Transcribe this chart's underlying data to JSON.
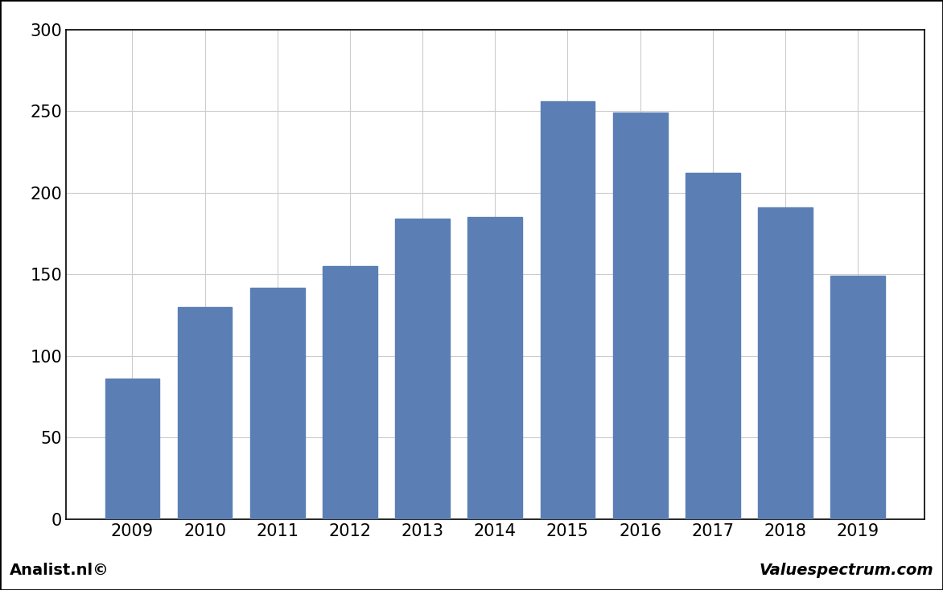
{
  "categories": [
    "2009",
    "2010",
    "2011",
    "2012",
    "2013",
    "2014",
    "2015",
    "2016",
    "2017",
    "2018",
    "2019"
  ],
  "values": [
    86,
    130,
    142,
    155,
    184,
    185,
    256,
    249,
    212,
    191,
    149
  ],
  "bar_color": "#5B7FB5",
  "ylim": [
    0,
    300
  ],
  "yticks": [
    0,
    50,
    100,
    150,
    200,
    250,
    300
  ],
  "background_color": "#FFFFFF",
  "plot_bg_color": "#FFFFFF",
  "grid_color": "#CCCCCC",
  "footer_left": "Analist.nl©",
  "footer_right": "Valuespectrum.com",
  "footer_fontsize": 14,
  "footer_bg_color": "#D3D3D3",
  "bar_width": 0.75,
  "tick_fontsize": 15,
  "border_color": "#000000"
}
